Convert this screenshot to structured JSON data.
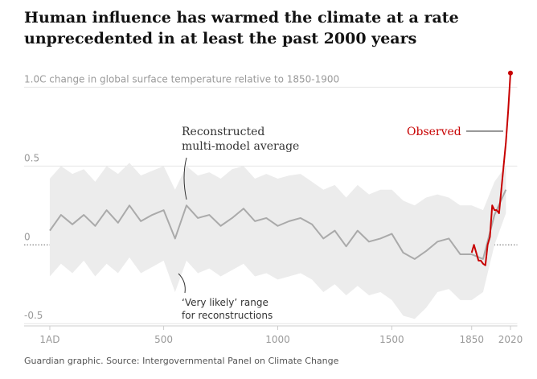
{
  "chart_data": {
    "type": "line",
    "title": [
      "Human influence has warmed the climate at a rate",
      "unprecedented in at least the past 2000 years"
    ],
    "source": "Guardian graphic. Source: Intergovernmental Panel on Climate Change",
    "annotations": {
      "reconstructed": [
        "Reconstructed",
        "multi-model average"
      ],
      "observed": "Observed",
      "range": [
        "‘Very likely’ range",
        "for reconstructions"
      ]
    },
    "xlim": [
      -20,
      2050
    ],
    "ylim": [
      -0.55,
      1.15
    ],
    "xticks": [
      {
        "value": 1,
        "label": "1AD"
      },
      500,
      1000,
      1500,
      1850,
      2020
    ],
    "yticks": [
      {
        "value": 1,
        "label": "1.0C change in global surface temperature relative to 1850-1900"
      },
      0.5,
      0,
      -0.5
    ],
    "x": [
      1,
      50,
      100,
      150,
      200,
      250,
      300,
      350,
      400,
      450,
      500,
      550,
      600,
      650,
      700,
      750,
      800,
      850,
      900,
      950,
      1000,
      1050,
      1100,
      1150,
      1200,
      1250,
      1300,
      1350,
      1400,
      1450,
      1500,
      1550,
      1600,
      1650,
      1700,
      1750,
      1800,
      1850,
      1900,
      1950,
      2000
    ],
    "reconstructed": {
      "color": "#aaaaaa",
      "values": [
        0.09,
        0.19,
        0.13,
        0.19,
        0.12,
        0.22,
        0.14,
        0.25,
        0.15,
        0.19,
        0.22,
        0.04,
        0.25,
        0.17,
        0.19,
        0.12,
        0.17,
        0.23,
        0.15,
        0.17,
        0.12,
        0.15,
        0.17,
        0.13,
        0.04,
        0.09,
        -0.01,
        0.09,
        0.02,
        0.04,
        0.07,
        -0.05,
        -0.09,
        -0.04,
        0.02,
        0.04,
        -0.06,
        -0.06,
        -0.09,
        0.19,
        0.35
      ]
    },
    "band": {
      "color": "#ececec",
      "upper": [
        0.42,
        0.5,
        0.45,
        0.48,
        0.4,
        0.5,
        0.45,
        0.52,
        0.44,
        0.47,
        0.5,
        0.35,
        0.5,
        0.44,
        0.46,
        0.42,
        0.48,
        0.5,
        0.42,
        0.45,
        0.42,
        0.44,
        0.45,
        0.4,
        0.35,
        0.38,
        0.3,
        0.38,
        0.32,
        0.35,
        0.35,
        0.28,
        0.25,
        0.3,
        0.32,
        0.3,
        0.25,
        0.25,
        0.22,
        0.4,
        0.5
      ],
      "lower": [
        -0.2,
        -0.12,
        -0.18,
        -0.1,
        -0.2,
        -0.12,
        -0.18,
        -0.08,
        -0.18,
        -0.14,
        -0.1,
        -0.3,
        -0.1,
        -0.18,
        -0.15,
        -0.2,
        -0.16,
        -0.12,
        -0.2,
        -0.18,
        -0.22,
        -0.2,
        -0.18,
        -0.22,
        -0.3,
        -0.25,
        -0.32,
        -0.26,
        -0.32,
        -0.3,
        -0.35,
        -0.45,
        -0.47,
        -0.4,
        -0.3,
        -0.28,
        -0.35,
        -0.35,
        -0.3,
        0.0,
        0.2
      ]
    },
    "observed": {
      "color": "#c70000",
      "x": [
        1850,
        1860,
        1870,
        1880,
        1890,
        1900,
        1910,
        1920,
        1930,
        1940,
        1950,
        1960,
        1970,
        1980,
        1990,
        2000,
        2010,
        2020
      ],
      "values": [
        -0.05,
        0.0,
        -0.05,
        -0.1,
        -0.1,
        -0.12,
        -0.13,
        0.0,
        0.05,
        0.25,
        0.22,
        0.22,
        0.2,
        0.35,
        0.5,
        0.65,
        0.85,
        1.09
      ]
    }
  }
}
